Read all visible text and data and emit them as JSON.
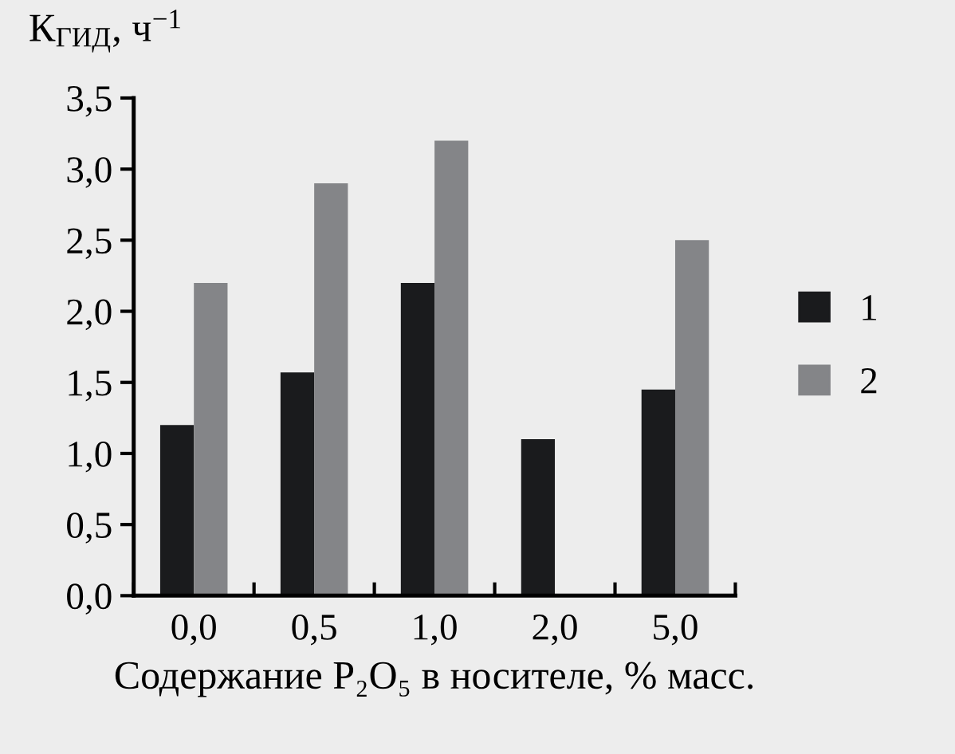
{
  "chart_data": {
    "type": "bar",
    "ylabel": "К$_{ГИД}$, ч$^{−1}$",
    "xlabel": "Содержание P₂O₅ в носителе, % масс.",
    "categories": [
      "0,0",
      "0,5",
      "1,0",
      "2,0",
      "5,0"
    ],
    "series": [
      {
        "name": "1",
        "color": "#1a1b1d",
        "values": [
          1.2,
          1.57,
          2.2,
          1.1,
          1.45
        ]
      },
      {
        "name": "2",
        "color": "#848588",
        "values": [
          2.2,
          2.9,
          3.2,
          null,
          2.5
        ]
      }
    ],
    "ylim": [
      0,
      3.5
    ],
    "yticks": [
      {
        "value": 0,
        "label": "0,0"
      },
      {
        "value": 0.5,
        "label": "0,5"
      },
      {
        "value": 1,
        "label": "1,0"
      },
      {
        "value": 1.5,
        "label": "1,5"
      },
      {
        "value": 2,
        "label": "2,0"
      },
      {
        "value": 2.5,
        "label": "2,5"
      },
      {
        "value": 3,
        "label": "3,0"
      },
      {
        "value": 3.5,
        "label": "3,5"
      }
    ],
    "grid": false,
    "legend": "right"
  }
}
